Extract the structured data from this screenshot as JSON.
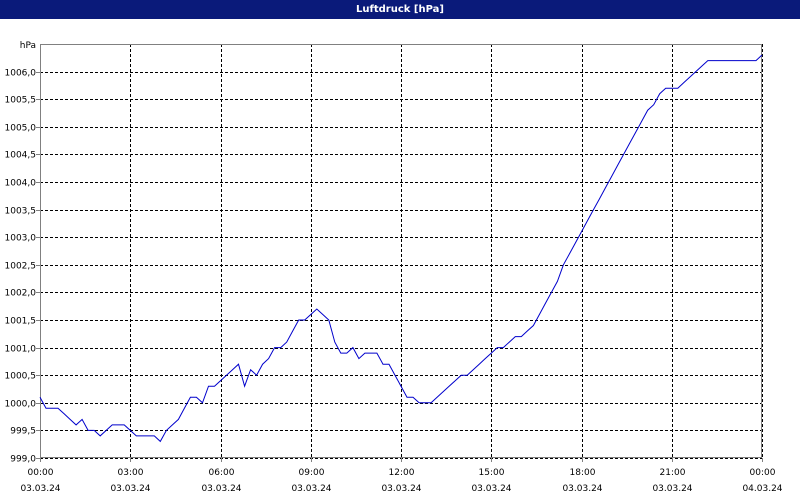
{
  "window": {
    "title": "Luftdruck [hPa]"
  },
  "colors": {
    "titlebar": "#0a1a7a",
    "line": "#0000cc",
    "grid": "#000000",
    "axis": "#808080"
  },
  "chart_data": {
    "type": "line",
    "title": "Luftdruck [hPa]",
    "ylabel": "hPa",
    "ylim": [
      999.0,
      1006.5
    ],
    "xlim_hours": [
      0,
      24
    ],
    "yticks": [
      "999,0",
      "999,5",
      "1000,0",
      "1000,5",
      "1001,0",
      "1001,5",
      "1002,0",
      "1002,5",
      "1003,0",
      "1003,5",
      "1004,0",
      "1004,5",
      "1005,0",
      "1005,5",
      "1006,0"
    ],
    "ytick_values": [
      999.0,
      999.5,
      1000.0,
      1000.5,
      1001.0,
      1001.5,
      1002.0,
      1002.5,
      1003.0,
      1003.5,
      1004.0,
      1004.5,
      1005.0,
      1005.5,
      1006.0
    ],
    "xticks": [
      {
        "time": "00:00",
        "date": "03.03.24",
        "hour": 0
      },
      {
        "time": "03:00",
        "date": "03.03.24",
        "hour": 3
      },
      {
        "time": "06:00",
        "date": "03.03.24",
        "hour": 6
      },
      {
        "time": "09:00",
        "date": "03.03.24",
        "hour": 9
      },
      {
        "time": "12:00",
        "date": "03.03.24",
        "hour": 12
      },
      {
        "time": "15:00",
        "date": "03.03.24",
        "hour": 15
      },
      {
        "time": "18:00",
        "date": "03.03.24",
        "hour": 18
      },
      {
        "time": "21:00",
        "date": "03.03.24",
        "hour": 21
      },
      {
        "time": "00:00",
        "date": "04.03.24",
        "hour": 24
      }
    ],
    "grid": true,
    "series": [
      {
        "x": [
          0,
          0.2,
          0.4,
          0.6,
          0.8,
          1.0,
          1.2,
          1.4,
          1.6,
          1.8,
          2.0,
          2.2,
          2.4,
          2.6,
          2.8,
          3.0,
          3.2,
          3.4,
          3.6,
          3.8,
          4.0,
          4.2,
          4.4,
          4.6,
          4.8,
          5.0,
          5.2,
          5.4,
          5.6,
          5.8,
          6.0,
          6.2,
          6.4,
          6.6,
          6.8,
          7.0,
          7.2,
          7.4,
          7.6,
          7.8,
          8.0,
          8.2,
          8.4,
          8.6,
          8.8,
          9.0,
          9.2,
          9.4,
          9.6,
          9.8,
          10.0,
          10.2,
          10.4,
          10.6,
          10.8,
          11.0,
          11.2,
          11.4,
          11.6,
          11.8,
          12.0,
          12.2,
          12.4,
          12.6,
          12.8,
          13.0,
          13.2,
          13.4,
          13.6,
          13.8,
          14.0,
          14.2,
          14.4,
          14.6,
          14.8,
          15.0,
          15.2,
          15.4,
          15.6,
          15.8,
          16.0,
          16.2,
          16.4,
          16.6,
          16.8,
          17.0,
          17.2,
          17.4,
          17.6,
          17.8,
          18.0,
          18.2,
          18.4,
          18.6,
          18.8,
          19.0,
          19.2,
          19.4,
          19.6,
          19.8,
          20.0,
          20.2,
          20.4,
          20.6,
          20.8,
          21.0,
          21.2,
          21.4,
          21.6,
          21.8,
          22.0,
          22.2,
          22.4,
          22.6,
          22.8,
          23.0,
          23.2,
          23.4,
          23.6,
          23.8,
          24.0
        ],
        "y": [
          1000.1,
          999.9,
          999.9,
          999.9,
          999.8,
          999.7,
          999.6,
          999.7,
          999.5,
          999.5,
          999.4,
          999.5,
          999.6,
          999.6,
          999.6,
          999.5,
          999.4,
          999.4,
          999.4,
          999.4,
          999.3,
          999.5,
          999.6,
          999.7,
          999.9,
          1000.1,
          1000.1,
          1000.0,
          1000.3,
          1000.3,
          1000.4,
          1000.5,
          1000.6,
          1000.7,
          1000.3,
          1000.6,
          1000.5,
          1000.7,
          1000.8,
          1001.0,
          1001.0,
          1001.1,
          1001.3,
          1001.5,
          1001.5,
          1001.6,
          1001.7,
          1001.6,
          1001.5,
          1001.1,
          1000.9,
          1000.9,
          1001.0,
          1000.8,
          1000.9,
          1000.9,
          1000.9,
          1000.7,
          1000.7,
          1000.5,
          1000.3,
          1000.1,
          1000.1,
          1000.0,
          1000.0,
          1000.0,
          1000.1,
          1000.2,
          1000.3,
          1000.4,
          1000.5,
          1000.5,
          1000.6,
          1000.7,
          1000.8,
          1000.9,
          1001.0,
          1001.0,
          1001.1,
          1001.2,
          1001.2,
          1001.3,
          1001.4,
          1001.6,
          1001.8,
          1002.0,
          1002.2,
          1002.5,
          1002.7,
          1002.9,
          1003.1,
          1003.3,
          1003.5,
          1003.7,
          1003.9,
          1004.1,
          1004.3,
          1004.5,
          1004.7,
          1004.9,
          1005.1,
          1005.3,
          1005.4,
          1005.6,
          1005.7,
          1005.7,
          1005.7,
          1005.8,
          1005.9,
          1006.0,
          1006.1,
          1006.2,
          1006.2,
          1006.2,
          1006.2,
          1006.2,
          1006.2,
          1006.2,
          1006.2,
          1006.2,
          1006.3
        ]
      }
    ]
  }
}
